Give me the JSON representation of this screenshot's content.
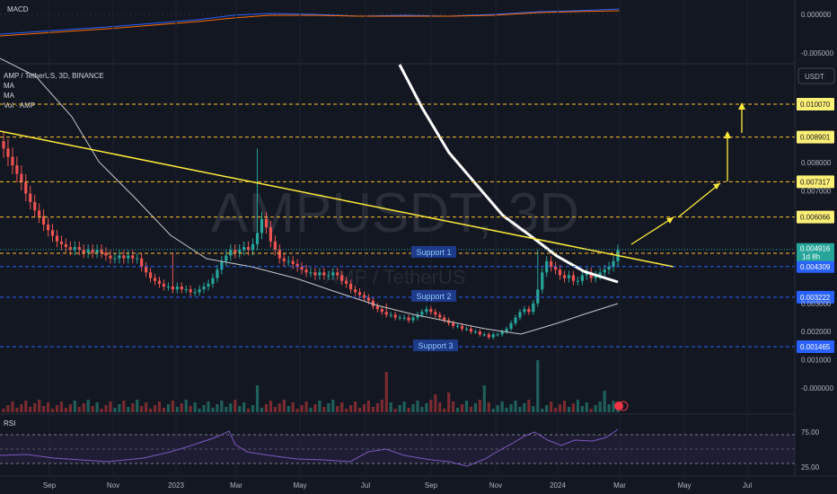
{
  "chart_data": {
    "type": "candlestick",
    "symbol_line": "AMP / TetherUS, 3D, BINANCE",
    "indicators": [
      "MA",
      "MA",
      "Vol · AMP"
    ],
    "watermark": "AMPUSDT, 3D",
    "watermark_sub": "AMP / TetherUS",
    "currency_button": "USDT",
    "macd_label": "MACD",
    "rsi_label": "RSI",
    "x_ticks": [
      "Sep",
      "Nov",
      "2023",
      "Mar",
      "May",
      "Jul",
      "Sep",
      "Nov",
      "2024",
      "Mar",
      "May",
      "Jul"
    ],
    "y_ticks": [
      "0.008000",
      "0.007000",
      "0.005000",
      "0.003000",
      "0.002000",
      "0.001000",
      "-0.000000"
    ],
    "y_tick_values": [
      0.008,
      0.007,
      0.005,
      0.003,
      0.002,
      0.001,
      0.0
    ],
    "macd_ticks": [
      "0.000000",
      "-0.005000"
    ],
    "rsi_ticks": [
      "75.00",
      "25.00"
    ],
    "price_levels": [
      {
        "label": "0.010070",
        "value": 0.01007,
        "bg": "#fff176",
        "fg": "#131722",
        "color": "#fbc02d"
      },
      {
        "label": "0.008901",
        "value": 0.008901,
        "bg": "#fff176",
        "fg": "#131722",
        "color": "#fbc02d"
      },
      {
        "label": "0.007317",
        "value": 0.007317,
        "bg": "#fff176",
        "fg": "#131722",
        "color": "#fbc02d"
      },
      {
        "label": "0.006066",
        "value": 0.006066,
        "bg": "#fff176",
        "fg": "#131722",
        "color": "#fbc02d"
      },
      {
        "label": "0.004780",
        "value": 0.00478,
        "bg": "#fff176",
        "fg": "#131722",
        "color": "#fbc02d"
      },
      {
        "label": "0.004309",
        "value": 0.004309,
        "bg": "#2962ff",
        "fg": "#ffffff",
        "color": "#2962ff"
      },
      {
        "label": "0.003222",
        "value": 0.003222,
        "bg": "#2962ff",
        "fg": "#ffffff",
        "color": "#2962ff"
      },
      {
        "label": "0.001465",
        "value": 0.001465,
        "bg": "#2962ff",
        "fg": "#ffffff",
        "color": "#2962ff"
      }
    ],
    "current_price": {
      "label": "0.004916",
      "countdown": "1d 8h",
      "value": 0.004916
    },
    "support_labels": [
      {
        "text": "Support 1",
        "value": 0.00478
      },
      {
        "text": "Support 2",
        "value": 0.003222
      },
      {
        "text": "Support 3",
        "value": 0.001465
      }
    ],
    "y_scale": {
      "min": 0.0,
      "max": 0.01007
    },
    "close_series": [
      0.0085,
      0.0082,
      0.0079,
      0.0076,
      0.0073,
      0.0069,
      0.0066,
      0.0063,
      0.0061,
      0.0058,
      0.0056,
      0.0054,
      0.0052,
      0.0051,
      0.005,
      0.0049,
      0.005,
      0.0049,
      0.0048,
      0.0049,
      0.0048,
      0.0049,
      0.0048,
      0.0047,
      0.0046,
      0.0046,
      0.0047,
      0.0046,
      0.0047,
      0.0046,
      0.0046,
      0.0043,
      0.0041,
      0.0039,
      0.0038,
      0.0037,
      0.0036,
      0.0036,
      0.0035,
      0.0036,
      0.0035,
      0.0035,
      0.0034,
      0.0034,
      0.0035,
      0.0036,
      0.0037,
      0.0039,
      0.0042,
      0.0045,
      0.0047,
      0.0049,
      0.0048,
      0.0049,
      0.005,
      0.0049,
      0.0051,
      0.0055,
      0.006,
      0.0057,
      0.0052,
      0.0049,
      0.0046,
      0.0045,
      0.0045,
      0.0044,
      0.0043,
      0.0042,
      0.0041,
      0.0041,
      0.004,
      0.0041,
      0.004,
      0.004,
      0.0041,
      0.004,
      0.0038,
      0.0037,
      0.0035,
      0.0034,
      0.0033,
      0.0032,
      0.0031,
      0.0029,
      0.0028,
      0.0027,
      0.0026,
      0.0026,
      0.0025,
      0.0025,
      0.0025,
      0.0024,
      0.0025,
      0.0026,
      0.0027,
      0.0028,
      0.0027,
      0.0026,
      0.0025,
      0.0024,
      0.0023,
      0.0022,
      0.0022,
      0.0021,
      0.0021,
      0.002,
      0.002,
      0.0019,
      0.0019,
      0.0018,
      0.0019,
      0.0019,
      0.002,
      0.0021,
      0.0023,
      0.0025,
      0.0027,
      0.0028,
      0.0027,
      0.003,
      0.0035,
      0.0041,
      0.0045,
      0.0043,
      0.0042,
      0.004,
      0.0039,
      0.004,
      0.0038,
      0.0038,
      0.004,
      0.0041,
      0.0039,
      0.004,
      0.0041,
      0.0042,
      0.0043,
      0.0045,
      0.0049
    ]
  }
}
